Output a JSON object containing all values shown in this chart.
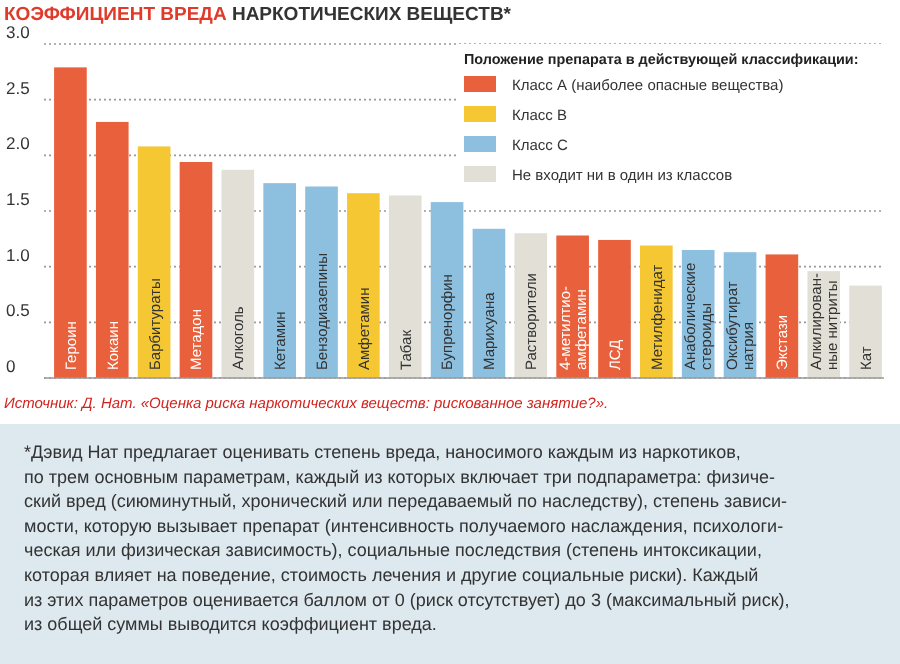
{
  "chart_data": {
    "type": "bar",
    "title": "КОЭФФИЦИЕНТ ВРЕДА НАРКОТИЧЕСКИХ ВЕЩЕСТВ*",
    "legend_title": "Положение препарата в действующей классификации:",
    "categories": [
      "Героин",
      "Кокаин",
      "Барбитураты",
      "Метадон",
      "Алкоголь",
      "Кетамин",
      "Бензодиазепины",
      "Амфетамин",
      "Табак",
      "Бупренорфин",
      "Марихуана",
      "Растворители",
      "4-метилтио-\nамфетамин",
      "ЛСД",
      "Метилфенидат",
      "Анаболические\nстероиды",
      "Оксибутират\nнатрия",
      "Экстази",
      "Алкилирован-\nные нитриты",
      "Кат"
    ],
    "series": [
      {
        "name": "Класс А (наиболее опасные вещества)",
        "color": "#e8603c",
        "values": [
          2.79,
          2.3,
          null,
          1.94,
          null,
          null,
          null,
          null,
          null,
          null,
          null,
          null,
          1.28,
          1.24,
          null,
          null,
          null,
          1.11,
          null,
          null
        ]
      },
      {
        "name": "Класс В",
        "color": "#f5c833",
        "values": [
          null,
          null,
          2.08,
          null,
          null,
          null,
          null,
          1.66,
          null,
          null,
          null,
          null,
          null,
          null,
          1.19,
          null,
          null,
          null,
          null,
          null
        ]
      },
      {
        "name": "Класс С",
        "color": "#8dbfdf",
        "values": [
          null,
          null,
          null,
          null,
          null,
          1.75,
          1.72,
          null,
          null,
          1.58,
          1.34,
          null,
          null,
          null,
          null,
          1.15,
          1.13,
          null,
          null,
          null
        ]
      },
      {
        "name": "Не входит ни в один из классов",
        "color": "#e2e0d6",
        "values": [
          null,
          null,
          null,
          null,
          1.87,
          null,
          null,
          null,
          1.64,
          null,
          null,
          1.3,
          null,
          null,
          null,
          null,
          null,
          null,
          0.96,
          0.83
        ]
      }
    ],
    "ylim": [
      0,
      3
    ],
    "yticks": [
      {
        "value": 0,
        "label": "0"
      },
      {
        "value": 0.5,
        "label": "0.5"
      },
      {
        "value": 1,
        "label": "1.0"
      },
      {
        "value": 1.5,
        "label": "1.5"
      },
      {
        "value": 2,
        "label": "2.0"
      },
      {
        "value": 2.5,
        "label": "2.5"
      },
      {
        "value": 3,
        "label": "3.0"
      }
    ],
    "grid": "y",
    "legend": "top right",
    "annotations": [
      "Источник: Д. Нат. «Оценка риска наркотических веществ: рискованное занятие?».",
      "*Дэвид Нат предлагает оценивать степень вреда, наносимого каждым из наркотиков,\nпо трем основным параметрам, каждый из которых включает три подпараметра: физиче-\nский вред (сиюминутный, хронический или передаваемый по наследству), степень зависи-\nмости, которую вызывает препарат (интенсивность получаемого наслаждения, психологи-\nческая или физическая зависимость), социальные последствия (степень интоксикации,\nкоторая влияет на поведение, стоимость лечения и другие социальные риски). Каждый\nиз этих параметров оценивается баллом от 0 (риск отсутствует) до 3 (максимальный риск),\nиз общей суммы выводится коэффициент вреда."
    ]
  }
}
